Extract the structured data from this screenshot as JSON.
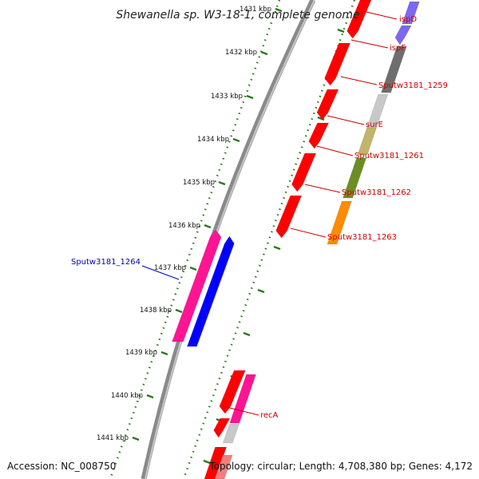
{
  "title": "Shewanella sp. W3-18-1, complete genome",
  "footer": {
    "accession": "Accession: NC_008750",
    "topology": "Topology: circular; Length: 4,708,380 bp; Genes: 4,172"
  },
  "colors": {
    "backbone": "#8a8a8a",
    "ticks": "#2a7a1a",
    "forward_label": "#cc0000",
    "reverse_label": "#0000bb"
  },
  "kbp_labels": [
    "1431 kbp",
    "1432 kbp",
    "1433 kbp",
    "1434 kbp",
    "1435 kbp",
    "1436 kbp",
    "1437 kbp",
    "1438 kbp",
    "1439 kbp",
    "1440 kbp",
    "1441 kbp"
  ],
  "gene_labels": [
    {
      "name": "ispD",
      "color": "#cc0000"
    },
    {
      "name": "ispF",
      "color": "#cc0000"
    },
    {
      "name": "Sputw3181_1259",
      "color": "#cc0000"
    },
    {
      "name": "surE",
      "color": "#cc0000"
    },
    {
      "name": "Sputw3181_1261",
      "color": "#cc0000"
    },
    {
      "name": "Sputw3181_1262",
      "color": "#cc0000"
    },
    {
      "name": "Sputw3181_1263",
      "color": "#cc0000"
    },
    {
      "name": "Sputw3181_1264",
      "color": "#0000bb"
    },
    {
      "name": "recA",
      "color": "#cc0000"
    }
  ],
  "gene_colors": {
    "red": "#ff0000",
    "blue": "#0000ff",
    "magenta": "#ff1493",
    "purple": "#7b68ee",
    "dark_grey": "#6e6e6e",
    "light_grey": "#c8c8c8",
    "khaki": "#c2b46a",
    "olive": "#6b8e23",
    "orange": "#ff8c00",
    "pink": "#f08080"
  }
}
